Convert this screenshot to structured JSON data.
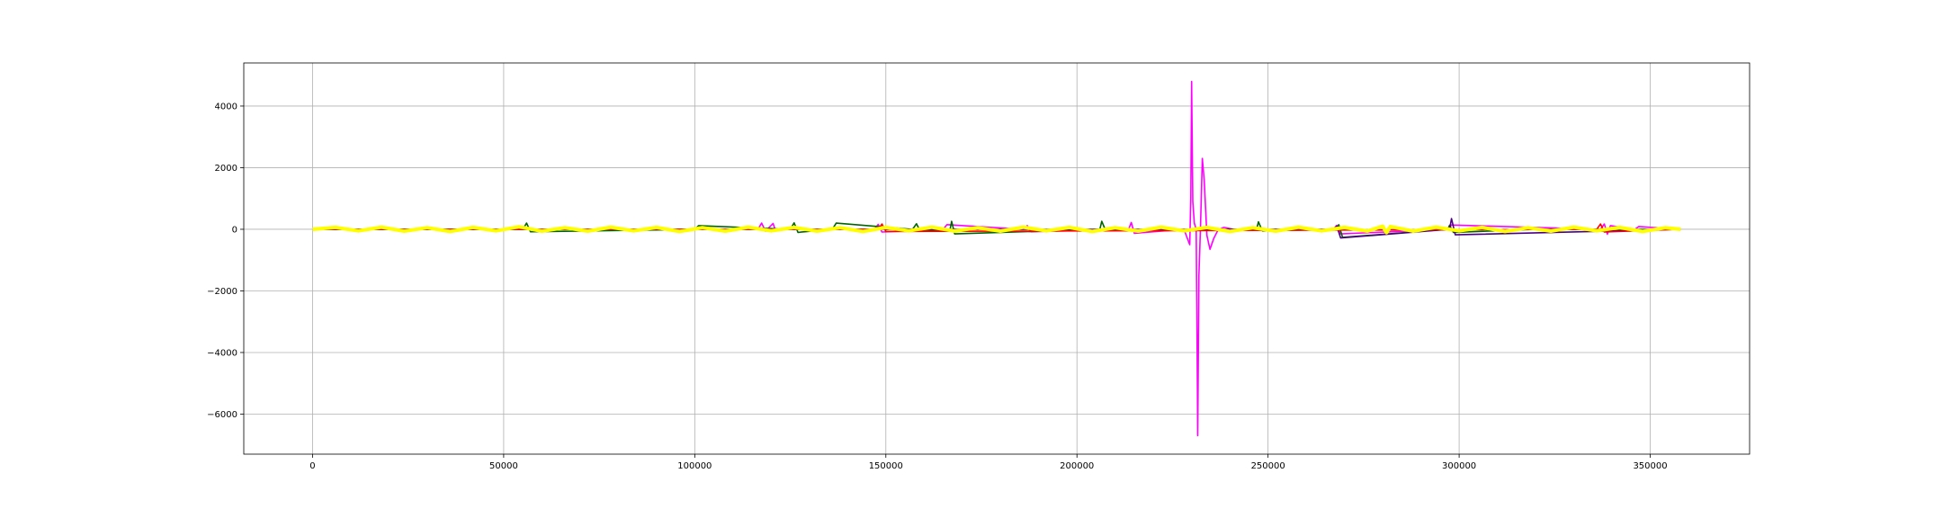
{
  "chart_data": {
    "type": "line",
    "title": "",
    "xlabel": "",
    "ylabel": "",
    "xlim": [
      -18000,
      376000
    ],
    "ylim": [
      -7300,
      5400
    ],
    "x_ticks": [
      0,
      50000,
      100000,
      150000,
      200000,
      250000,
      300000,
      350000
    ],
    "x_tick_labels": [
      "0",
      "50000",
      "100000",
      "150000",
      "200000",
      "250000",
      "300000",
      "350000"
    ],
    "y_ticks": [
      -6000,
      -4000,
      -2000,
      0,
      2000,
      4000
    ],
    "y_tick_labels": [
      "−6000",
      "−4000",
      "−2000",
      "0",
      "2000",
      "4000"
    ],
    "grid": true,
    "legend": "none",
    "series": [
      {
        "color": "#ff00ff",
        "x": [
          0,
          60000,
          116500,
          117500,
          118500,
          120500,
          121000,
          147000,
          148000,
          149000,
          165000,
          166000,
          186000,
          187000,
          188000,
          213500,
          214200,
          215000,
          228000,
          229500,
          229800,
          230000,
          230300,
          230700,
          231200,
          231400,
          231600,
          231900,
          232300,
          232800,
          233300,
          234000,
          234800,
          235800,
          237000,
          238500,
          241000,
          267000,
          268000,
          269000,
          297000,
          298000,
          337000,
          338000,
          338800,
          339600,
          346000,
          347000,
          358000
        ],
        "y": [
          0,
          0,
          0,
          200,
          -60,
          190,
          0,
          0,
          160,
          -90,
          0,
          150,
          0,
          120,
          -80,
          0,
          220,
          -130,
          0,
          -500,
          1000,
          4800,
          900,
          200,
          0,
          -3000,
          -6700,
          -1500,
          0,
          2300,
          1600,
          -200,
          -650,
          -300,
          0,
          60,
          0,
          0,
          130,
          -150,
          0,
          140,
          0,
          170,
          -160,
          120,
          0,
          90,
          0
        ]
      },
      {
        "color": "#006400",
        "x": [
          0,
          55000,
          56000,
          57000,
          100000,
          101000,
          125000,
          126000,
          127000,
          136000,
          137000,
          157000,
          158000,
          159000,
          166800,
          167200,
          168000,
          206000,
          206500,
          207500,
          247000,
          247500,
          248500,
          268000,
          268500,
          269500,
          297000,
          297500,
          298500,
          320000,
          358000
        ],
        "y": [
          0,
          0,
          200,
          -80,
          0,
          120,
          0,
          210,
          -100,
          0,
          200,
          0,
          180,
          -60,
          0,
          260,
          -150,
          0,
          260,
          -40,
          0,
          240,
          -50,
          0,
          150,
          -260,
          0,
          130,
          -100,
          0,
          0
        ]
      },
      {
        "color": "#4b0082",
        "x": [
          0,
          267000,
          268000,
          269000,
          297500,
          298000,
          299000,
          358000
        ],
        "y": [
          0,
          0,
          100,
          -280,
          0,
          350,
          -180,
          0
        ]
      },
      {
        "color": "#ff0000",
        "x": [
          0,
          148000,
          149000,
          150000,
          336000,
          337000,
          338000,
          358000
        ],
        "y": [
          0,
          0,
          170,
          -70,
          0,
          170,
          -90,
          0
        ]
      },
      {
        "color": "#ffff00",
        "x": [
          0,
          6000,
          12000,
          18000,
          24000,
          30000,
          36000,
          42000,
          48000,
          54000,
          60000,
          66000,
          72000,
          78000,
          84000,
          90000,
          96000,
          102000,
          108000,
          114000,
          120000,
          126000,
          132000,
          138000,
          144000,
          150000,
          156000,
          162000,
          168000,
          174000,
          180000,
          186000,
          192000,
          198000,
          204000,
          210000,
          216000,
          222000,
          228000,
          234000,
          240000,
          246000,
          252000,
          258000,
          264000,
          270000,
          276000,
          280000,
          281000,
          282000,
          288000,
          294000,
          300000,
          306000,
          312000,
          318000,
          324000,
          330000,
          336000,
          342000,
          348000,
          354000,
          358000
        ],
        "y": [
          0,
          60,
          -50,
          70,
          -60,
          50,
          -70,
          60,
          -50,
          80,
          -60,
          50,
          -60,
          70,
          -50,
          60,
          -70,
          50,
          -60,
          70,
          -50,
          60,
          -60,
          50,
          -70,
          60,
          -50,
          70,
          -60,
          50,
          -60,
          70,
          -50,
          60,
          -70,
          50,
          -60,
          70,
          -50,
          60,
          -70,
          50,
          -60,
          70,
          -50,
          60,
          -60,
          100,
          -110,
          90,
          -60,
          70,
          -50,
          60,
          -70,
          50,
          -60,
          70,
          -50,
          60,
          -70,
          50,
          0
        ]
      }
    ]
  }
}
